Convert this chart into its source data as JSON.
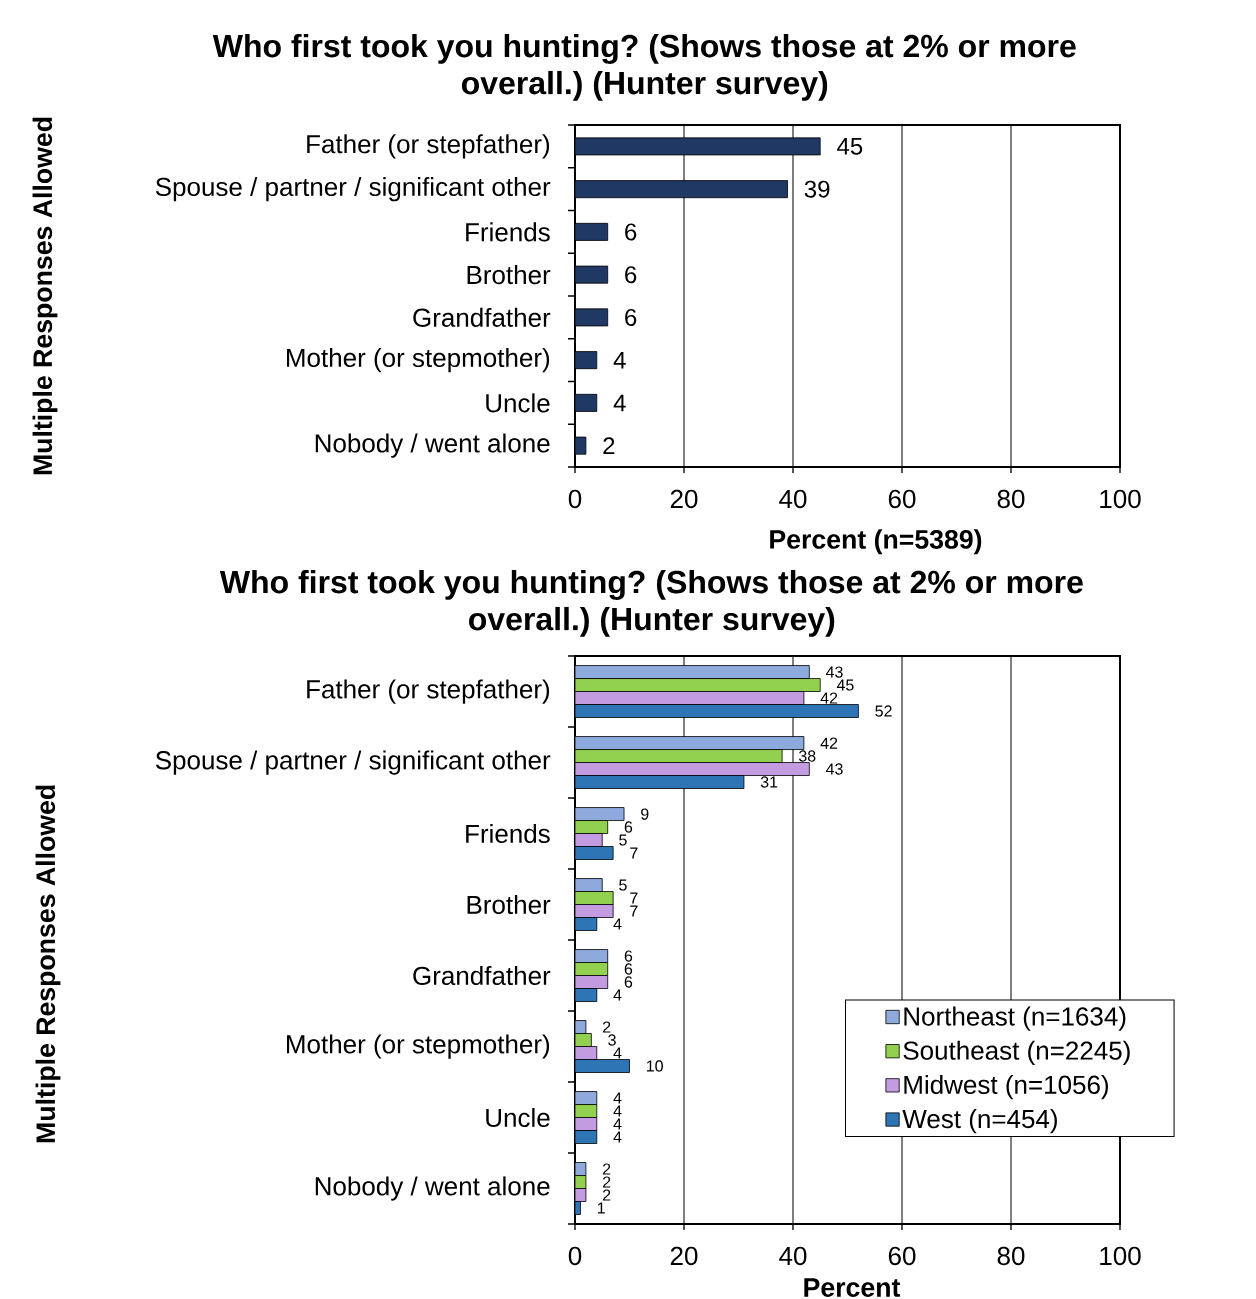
{
  "chart_data": [
    {
      "type": "bar",
      "orientation": "horizontal",
      "title": "Who first took you hunting? (Shows those at 2% or more overall.) (Hunter survey)",
      "xlabel": "Percent (n=5389)",
      "ylabel": "Multiple Responses Allowed",
      "categories": [
        "Father (or stepfather)",
        "Spouse / partner / significant other",
        "Friends",
        "Brother",
        "Grandfather",
        "Mother (or stepmother)",
        "Uncle",
        "Nobody / went alone"
      ],
      "values": [
        45,
        39,
        6,
        6,
        6,
        4,
        4,
        2
      ],
      "color": "#203864",
      "xlim": [
        0,
        100
      ],
      "xticks": [
        0,
        20,
        40,
        60,
        80,
        100
      ],
      "grid": "x",
      "data_labels": true
    },
    {
      "type": "bar",
      "orientation": "horizontal",
      "title": "Who first took you hunting? (Shows those at 2% or more overall.) (Hunter survey)",
      "xlabel": "Percent",
      "ylabel": "Multiple Responses Allowed",
      "categories": [
        "Father (or stepfather)",
        "Spouse / partner / significant other",
        "Friends",
        "Brother",
        "Grandfather",
        "Mother (or stepmother)",
        "Uncle",
        "Nobody / went alone"
      ],
      "series": [
        {
          "name": "Northeast (n=1634)",
          "color": "#8eaadc",
          "values": [
            43,
            42,
            9,
            5,
            6,
            2,
            4,
            2
          ]
        },
        {
          "name": "Southeast (n=2245)",
          "color": "#92d050",
          "values": [
            45,
            38,
            6,
            7,
            6,
            3,
            4,
            2
          ]
        },
        {
          "name": "Midwest (n=1056)",
          "color": "#c39be1",
          "values": [
            42,
            43,
            5,
            7,
            6,
            4,
            4,
            2
          ]
        },
        {
          "name": "West (n=454)",
          "color": "#2e75b6",
          "values": [
            52,
            31,
            7,
            4,
            4,
            10,
            4,
            1
          ]
        }
      ],
      "xlim": [
        0,
        100
      ],
      "xticks": [
        0,
        20,
        40,
        60,
        80,
        100
      ],
      "grid": "x",
      "legend": "bottom right",
      "data_labels": true
    }
  ]
}
